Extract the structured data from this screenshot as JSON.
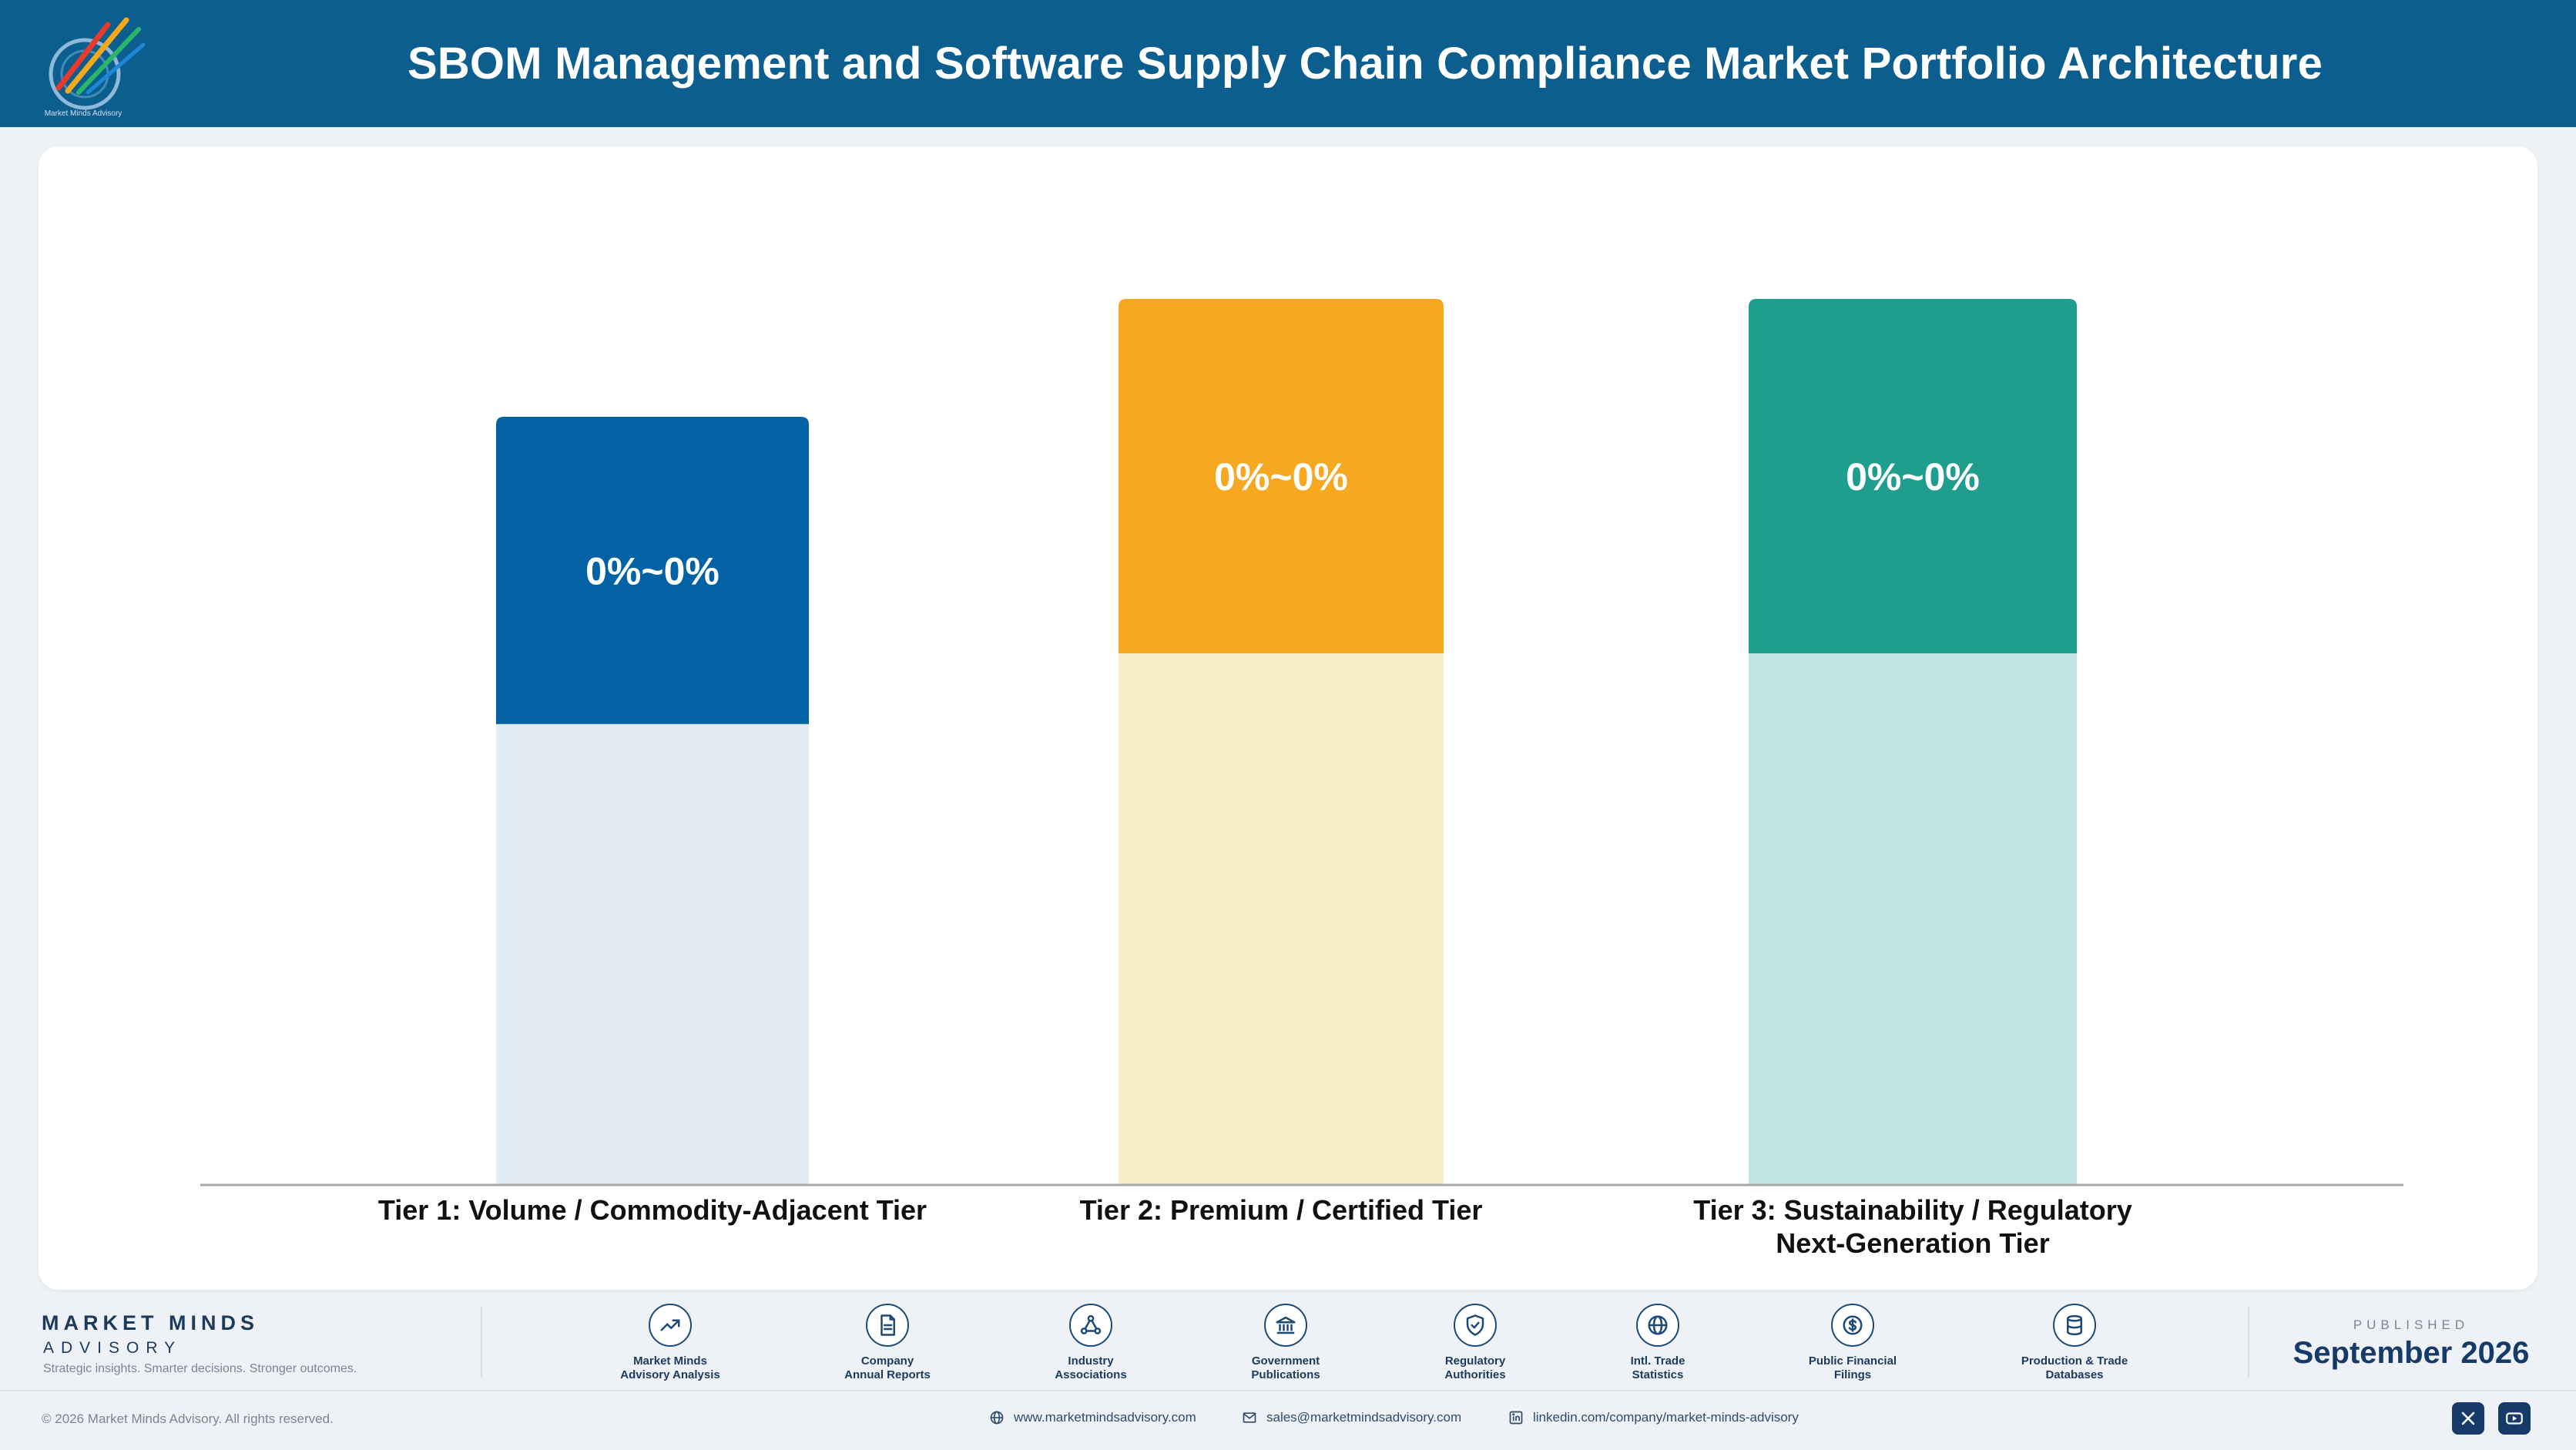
{
  "header": {
    "title": "SBOM Management and Software Supply Chain Compliance Market Portfolio Architecture",
    "logo_icon": "market-minds-logo",
    "logo_text": "Market Minds Advisory"
  },
  "chart_data": {
    "type": "bar",
    "title": "",
    "xlabel": "",
    "ylabel": "",
    "grid": false,
    "categories": [
      "Tier 1: Volume / Commodity-Adjacent Tier",
      "Tier 2: Premium / Certified Tier",
      "Tier 3: Sustainability / Regulatory Next-Generation Tier"
    ],
    "category_lines": [
      [
        "Tier 1: Volume / Commodity-Adjacent Tier"
      ],
      [
        "Tier 2: Premium / Certified Tier"
      ],
      [
        "Tier 3: Sustainability / Regulatory",
        "Next-Generation Tier"
      ]
    ],
    "ylim": [
      0,
      100
    ],
    "values": [
      86.7,
      100,
      100
    ],
    "highlight_share": [
      0.4,
      0.4,
      0.4
    ],
    "data_labels": [
      "0%~0%",
      "0%~0%",
      "0%~0%"
    ],
    "colors": [
      "#0262a3",
      "#f6a920",
      "#1f9e8f"
    ],
    "light_colors": [
      "#e2ecf5",
      "#f9ecc9",
      "#c1e6e3"
    ]
  },
  "footer": {
    "brand_name": "MARKET MINDS",
    "brand_sub": "ADVISORY",
    "tagline": "Strategic insights. Smarter decisions. Stronger outcomes.",
    "sources": [
      {
        "icon": "chart-line-icon",
        "line1": "Market Minds",
        "line2": "Advisory Analysis"
      },
      {
        "icon": "document-icon",
        "line1": "Company",
        "line2": "Annual Reports"
      },
      {
        "icon": "network-icon",
        "line1": "Industry",
        "line2": "Associations"
      },
      {
        "icon": "government-building-icon",
        "line1": "Government",
        "line2": "Publications"
      },
      {
        "icon": "shield-check-icon",
        "line1": "Regulatory",
        "line2": "Authorities"
      },
      {
        "icon": "globe-icon",
        "line1": "Intl. Trade",
        "line2": "Statistics"
      },
      {
        "icon": "dollar-coin-icon",
        "line1": "Public Financial",
        "line2": "Filings"
      },
      {
        "icon": "database-icon",
        "line1": "Production & Trade",
        "line2": "Databases"
      }
    ],
    "published_label": "PUBLISHED",
    "published_date": "September 2026",
    "copyright": "© 2026 Market Minds Advisory. All rights reserved.",
    "website": "www.marketmindsadvisory.com",
    "email": "sales@marketmindsadvisory.com",
    "linkedin": "linkedin.com/company/market-minds-advisory",
    "social": [
      "x-icon",
      "youtube-icon"
    ]
  }
}
